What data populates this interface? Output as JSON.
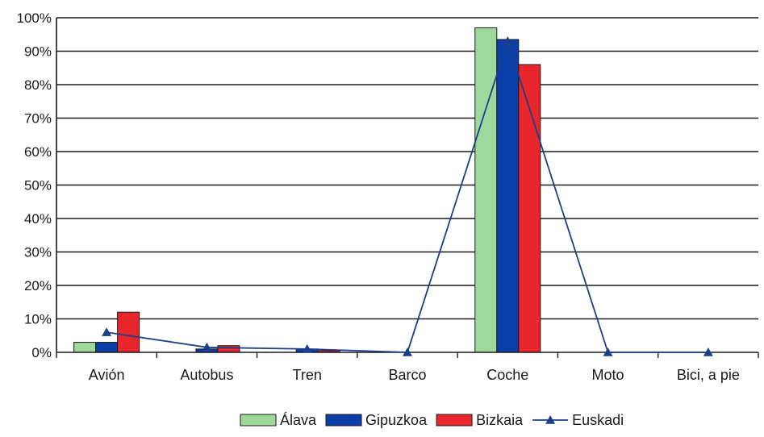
{
  "chart_data": {
    "type": "bar",
    "categories": [
      "Avión",
      "Autobus",
      "Tren",
      "Barco",
      "Coche",
      "Moto",
      "Bici, a pie"
    ],
    "series": [
      {
        "name": "Álava",
        "type": "bar",
        "color": "#9fd89b",
        "values": [
          3,
          0,
          0,
          0,
          97,
          0,
          0
        ]
      },
      {
        "name": "Gipuzkoa",
        "type": "bar",
        "color": "#0a3fa8",
        "values": [
          3,
          1,
          1,
          0,
          93.5,
          0,
          0
        ]
      },
      {
        "name": "Bizkaia",
        "type": "bar",
        "color": "#e8262b",
        "values": [
          12,
          2,
          0.5,
          0,
          86,
          0,
          0
        ]
      },
      {
        "name": "Euskadi",
        "type": "line",
        "color": "#1c3f8c",
        "marker": "triangle",
        "values": [
          6,
          1.5,
          1,
          0,
          93,
          0,
          0
        ]
      }
    ],
    "ylim": [
      0,
      100
    ],
    "yticks": [
      "0%",
      "10%",
      "20%",
      "30%",
      "40%",
      "50%",
      "60%",
      "70%",
      "80%",
      "90%",
      "100%"
    ],
    "title": "",
    "xlabel": "",
    "ylabel": "",
    "grid": true,
    "legend_position": "bottom"
  }
}
